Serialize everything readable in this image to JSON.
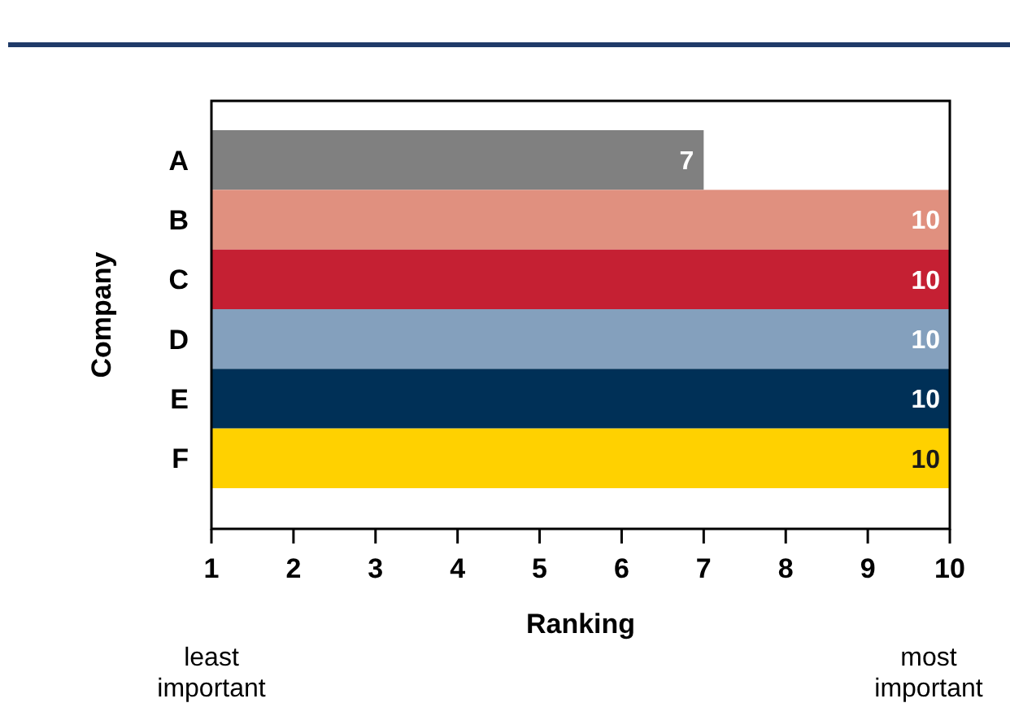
{
  "chart_data": {
    "type": "bar",
    "orientation": "horizontal",
    "categories": [
      "A",
      "B",
      "C",
      "D",
      "E",
      "F"
    ],
    "values": [
      7,
      10,
      10,
      10,
      10,
      10
    ],
    "colors": [
      "#808080",
      "#e0907f",
      "#c52033",
      "#84a0bd",
      "#003057",
      "#ffd100"
    ],
    "xlim": [
      1,
      10
    ],
    "xticks": [
      1,
      2,
      3,
      4,
      5,
      6,
      7,
      8,
      9,
      10
    ],
    "xlabel": "Ranking",
    "ylabel": "Company",
    "data_labels": true,
    "grid": false,
    "annotations": [
      "least important",
      "most important"
    ]
  }
}
